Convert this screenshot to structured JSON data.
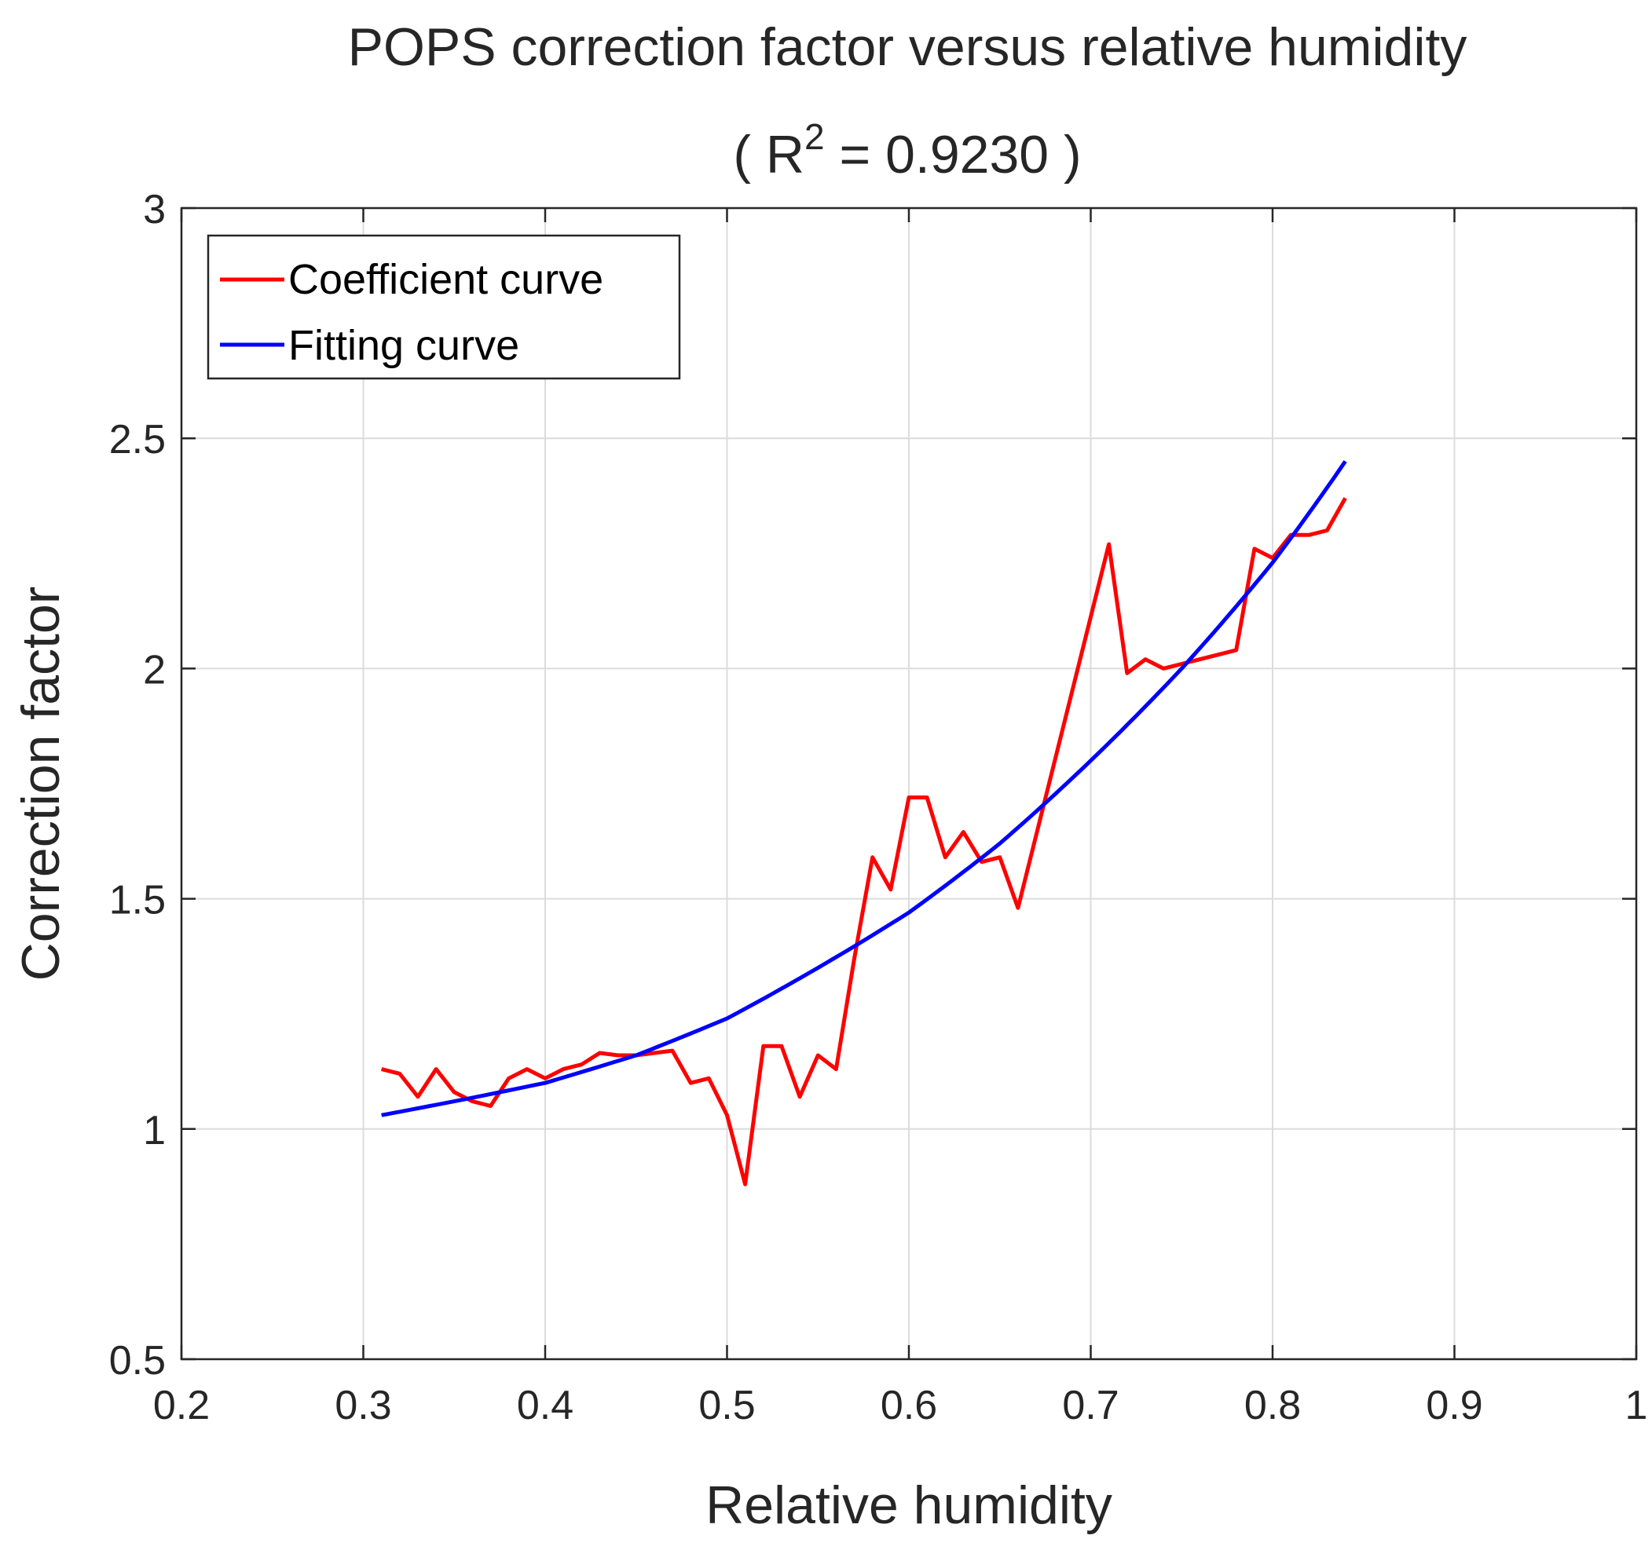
{
  "chart_data": {
    "type": "line",
    "title": "POPS correction factor versus relative humidity",
    "subtitle": {
      "prefix": "( R",
      "superscript": "2",
      "suffix": " = 0.9230 )"
    },
    "xlabel": "Relative humidity",
    "ylabel": "Correction factor",
    "xlim": [
      0.2,
      1.0
    ],
    "ylim": [
      0.5,
      3.0
    ],
    "xticks": [
      0.2,
      0.3,
      0.4,
      0.5,
      0.6,
      0.7,
      0.8,
      0.9,
      1.0
    ],
    "yticks": [
      0.5,
      1.0,
      1.5,
      2.0,
      2.5,
      3.0
    ],
    "xtick_labels": [
      "0.2",
      "0.3",
      "0.4",
      "0.5",
      "0.6",
      "0.7",
      "0.8",
      "0.9",
      "1"
    ],
    "ytick_labels": [
      "0.5",
      "1",
      "1.5",
      "2",
      "2.5",
      "3"
    ],
    "grid": true,
    "legend_position": "top-left",
    "series": [
      {
        "name": "Coefficient curve",
        "color": "#ff0000",
        "x": [
          0.31,
          0.32,
          0.33,
          0.34,
          0.35,
          0.36,
          0.37,
          0.38,
          0.39,
          0.4,
          0.41,
          0.42,
          0.43,
          0.44,
          0.45,
          0.46,
          0.47,
          0.48,
          0.49,
          0.5,
          0.51,
          0.52,
          0.53,
          0.54,
          0.55,
          0.56,
          0.57,
          0.58,
          0.59,
          0.6,
          0.61,
          0.62,
          0.63,
          0.64,
          0.65,
          0.66,
          0.71,
          0.72,
          0.73,
          0.74,
          0.75,
          0.78,
          0.79,
          0.8,
          0.81,
          0.82,
          0.83,
          0.84
        ],
        "y": [
          1.13,
          1.12,
          1.07,
          1.13,
          1.08,
          1.06,
          1.05,
          1.11,
          1.13,
          1.11,
          1.13,
          1.14,
          1.165,
          1.16,
          1.16,
          1.165,
          1.17,
          1.1,
          1.11,
          1.03,
          0.88,
          1.18,
          1.18,
          1.07,
          1.16,
          1.13,
          1.37,
          1.59,
          1.52,
          1.72,
          1.72,
          1.59,
          1.645,
          1.58,
          1.59,
          1.48,
          2.27,
          1.99,
          2.02,
          2.0,
          2.01,
          2.04,
          2.26,
          2.24,
          2.29,
          2.29,
          2.3,
          2.37
        ]
      },
      {
        "name": "Fitting curve",
        "color": "#0000ff",
        "x": [
          0.31,
          0.35,
          0.4,
          0.45,
          0.5,
          0.55,
          0.6,
          0.65,
          0.7,
          0.75,
          0.8,
          0.84
        ],
        "y": [
          1.03,
          1.06,
          1.1,
          1.16,
          1.24,
          1.35,
          1.47,
          1.62,
          1.8,
          2.0,
          2.23,
          2.45
        ]
      }
    ]
  }
}
